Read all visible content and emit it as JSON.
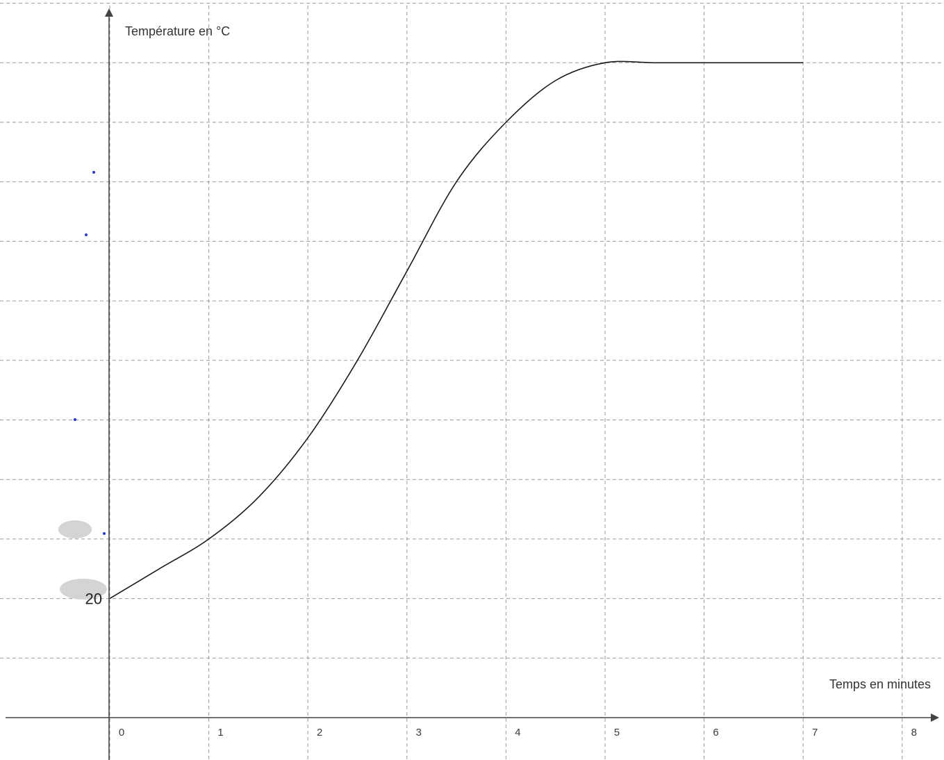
{
  "chart_data": {
    "type": "line",
    "ylabel": "Température en °C",
    "xlabel": "Temps en minutes",
    "x_ticks": [
      "0",
      "1",
      "2",
      "3",
      "4",
      "5",
      "6",
      "7",
      "8"
    ],
    "y_ticks": [
      {
        "value": 20,
        "label": "20"
      }
    ],
    "xlim": [
      0,
      8.3
    ],
    "ylim": [
      0,
      120
    ],
    "grid": true,
    "series": [
      {
        "x": [
          0,
          0.5,
          1,
          1.5,
          2,
          2.5,
          3,
          3.5,
          4,
          4.5,
          5,
          5.5,
          6,
          6.5,
          7
        ],
        "y": [
          20,
          25,
          30,
          37,
          47,
          60,
          75,
          90,
          100,
          107,
          110,
          110,
          110,
          110,
          110
        ]
      }
    ]
  }
}
